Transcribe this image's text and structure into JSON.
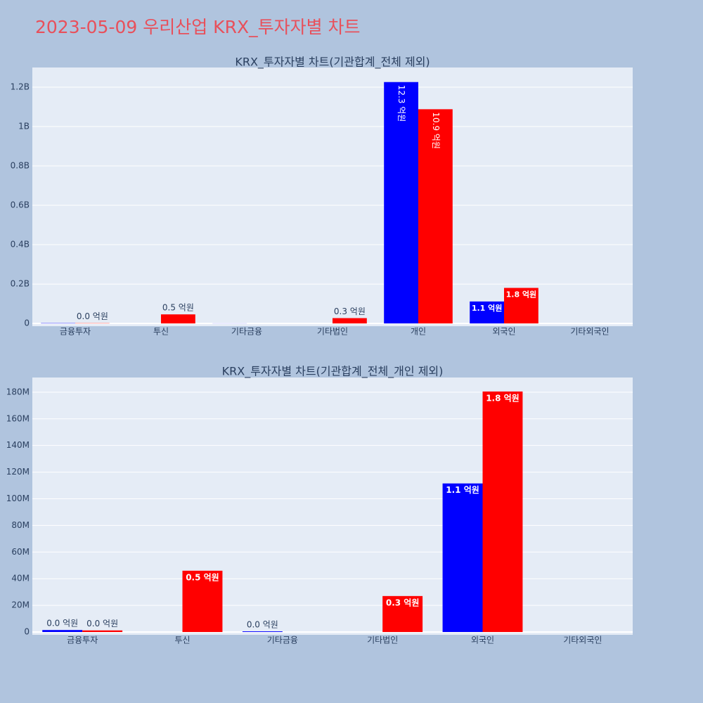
{
  "title": "2023-05-09 우리산업 KRX_투자자별 차트",
  "chart_data": [
    {
      "type": "bar",
      "title": "KRX_투자자별 차트(기관합계_전체 제외)",
      "categories": [
        "금융투자",
        "투신",
        "기타금융",
        "기타법인",
        "개인",
        "외국인",
        "기타외국인"
      ],
      "series": [
        {
          "color": "#0000ff",
          "values": [
            1500000,
            null,
            500000,
            null,
            1226000000,
            111500000,
            null
          ],
          "value_labels": [
            null,
            null,
            null,
            null,
            "12.3 억원",
            "1.1 억원",
            null
          ]
        },
        {
          "color": "#ff0000",
          "values": [
            1200000,
            46000000,
            null,
            27000000,
            1088000000,
            180500000,
            null
          ],
          "value_labels": [
            "0.0 억원",
            "0.5 억원",
            null,
            "0.3 억원",
            "10.9 억원",
            "1.8 억원",
            null
          ]
        }
      ],
      "ylim": [
        -14000000,
        1300000000
      ],
      "yticks": [
        0,
        {
          "value": 200000000,
          "label": "0.2B"
        },
        {
          "value": 400000000,
          "label": "0.4B"
        },
        {
          "value": 600000000,
          "label": "0.6B"
        },
        {
          "value": 800000000,
          "label": "0.8B"
        },
        {
          "value": 1000000000,
          "label": "1B"
        },
        {
          "value": 1200000000,
          "label": "1.2B"
        }
      ],
      "grid": true
    },
    {
      "type": "bar",
      "title": "KRX_투자자별 차트(기관합계_전체_개인 제외)",
      "categories": [
        "금융투자",
        "투신",
        "기타금융",
        "기타법인",
        "외국인",
        "기타외국인"
      ],
      "series": [
        {
          "color": "#0000ff",
          "values": [
            1500000,
            null,
            500000,
            null,
            111500000,
            null
          ],
          "value_labels": [
            "0.0 억원",
            null,
            "0.0 억원",
            null,
            "1.1 억원",
            null
          ]
        },
        {
          "color": "#ff0000",
          "values": [
            1200000,
            46000000,
            null,
            27000000,
            180500000,
            null
          ],
          "value_labels": [
            "0.0 억원",
            "0.5 억원",
            null,
            "0.3 억원",
            "1.8 억원",
            null
          ]
        }
      ],
      "ylim": [
        -2100000,
        191000000
      ],
      "yticks": [
        0,
        {
          "value": 20000000,
          "label": "20M"
        },
        {
          "value": 40000000,
          "label": "40M"
        },
        {
          "value": 60000000,
          "label": "60M"
        },
        {
          "value": 80000000,
          "label": "80M"
        },
        {
          "value": 100000000,
          "label": "100M"
        },
        {
          "value": 120000000,
          "label": "120M"
        },
        {
          "value": 140000000,
          "label": "140M"
        },
        {
          "value": 160000000,
          "label": "160M"
        },
        {
          "value": 180000000,
          "label": "180M"
        }
      ],
      "grid": true
    }
  ]
}
